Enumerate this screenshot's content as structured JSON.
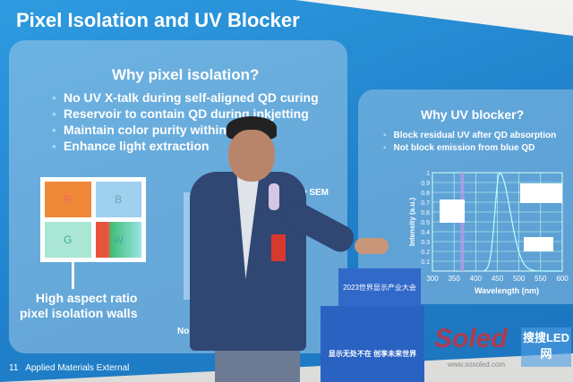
{
  "slide": {
    "title": "Pixel Isolation and UV Blocker",
    "left": {
      "heading": "Why pixel isolation?",
      "bullets": [
        "No UV X-talk during self-aligned QD curing",
        "Reservoir to contain QD during inkjetting",
        "Maintain color purity within pixel",
        "Enhance light extraction"
      ],
      "pixels": [
        "R",
        "B",
        "G",
        "W"
      ],
      "caption": [
        "High aspect ratio",
        "pixel isolation walls"
      ],
      "sem_label": "New SEM",
      "noqd_label": "No QD"
    },
    "right": {
      "heading": "Why UV blocker?",
      "bullets": [
        "Block residual UV after QD absorption",
        "Not block emission from blue QD"
      ]
    },
    "footer": {
      "page": "11",
      "text": "Applied Materials External"
    },
    "colors": {
      "screen": "#1f7fc8",
      "red_pixel": "#f0883a",
      "blue_pixel": "#9fd0ef",
      "green_pixel": "#a9e6d4"
    }
  },
  "chart_data": {
    "type": "line",
    "xlabel": "Wavelength (nm)",
    "ylabel": "Intensity (a.u.)",
    "x_ticks": [
      "300",
      "350",
      "400",
      "450",
      "500",
      "550",
      "600"
    ],
    "y_ticks": [
      "0.1",
      "0.2",
      "0.3",
      "0.4",
      "0.5",
      "0.6",
      "0.7",
      "0.8",
      "0.9",
      "1"
    ],
    "xlim": [
      300,
      600
    ],
    "ylim": [
      0,
      1
    ],
    "grid": true
  },
  "podium": {
    "event": "2023世界显示产业大会",
    "slogan": "显示无处不在 创享未来世界"
  },
  "watermark": {
    "logo": "Soled",
    "brand": "搜搜LED网",
    "url": "www.sosoled.com"
  }
}
